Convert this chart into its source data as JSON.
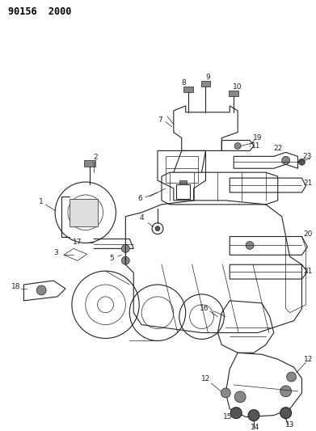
{
  "title_code": "90156  2000",
  "background_color": "#ffffff",
  "fig_width": 3.91,
  "fig_height": 5.33,
  "dpi": 100,
  "title_fontsize": 8.5,
  "label_fontsize": 6.5,
  "line_color": "#222222",
  "lw_main": 0.8,
  "lw_thin": 0.5
}
